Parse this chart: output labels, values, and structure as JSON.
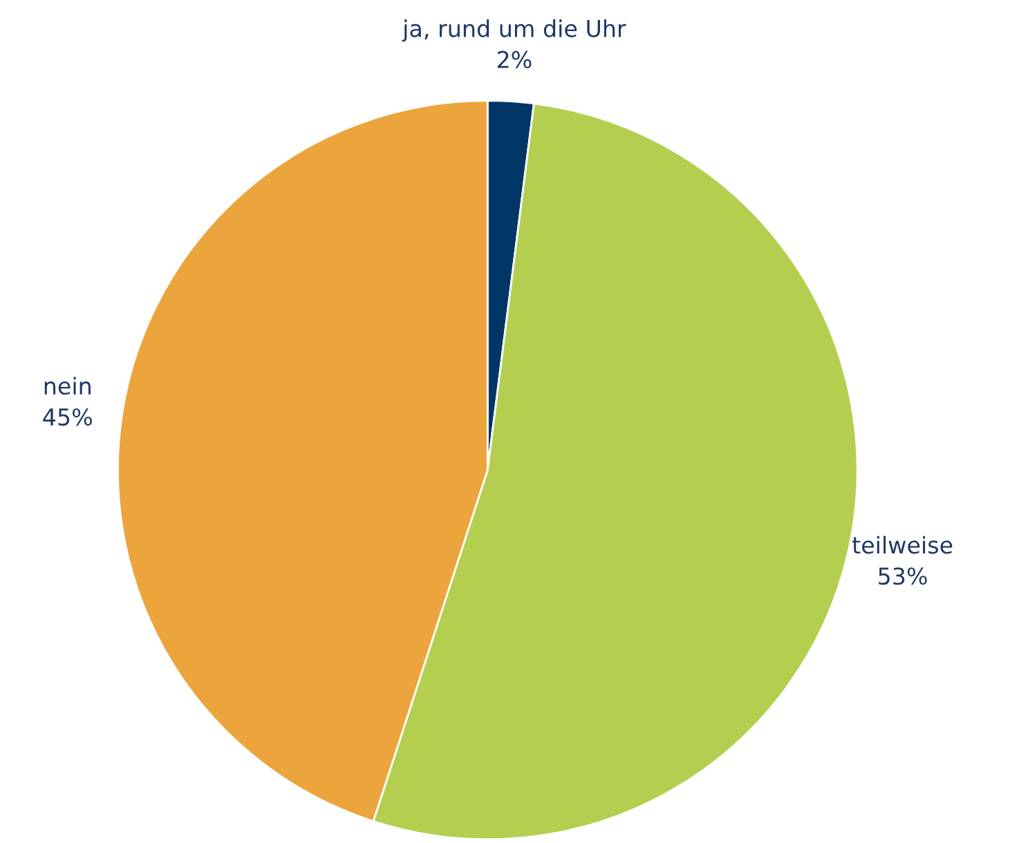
{
  "chart_data": {
    "type": "pie",
    "categories": [
      "ja, rund um die Uhr",
      "teilweise",
      "nein"
    ],
    "values": [
      2,
      53,
      45
    ],
    "colors": [
      "#003767",
      "#b4cf50",
      "#eca43c"
    ],
    "value_labels": [
      "2%",
      "53%",
      "45%"
    ],
    "legend": false
  }
}
